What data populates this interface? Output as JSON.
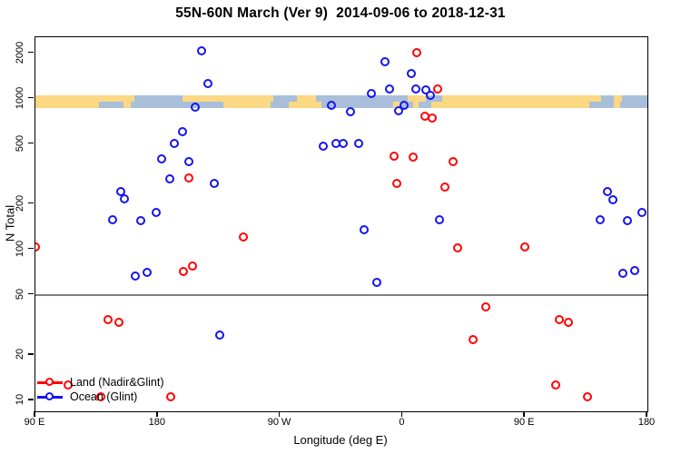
{
  "title": "55N-60N March (Ver 9)  2014-09-06 to 2018-12-31",
  "chart_data": {
    "type": "scatter",
    "title": "55N-60N March (Ver 9)  2014-09-06 to 2018-12-31",
    "xlabel": "Longitude (deg E)",
    "ylabel": "N Total",
    "x_axis": {
      "min": 90,
      "max": 540,
      "ticks": [
        {
          "value": 90,
          "label": "90 E"
        },
        {
          "value": 180,
          "label": "180"
        },
        {
          "value": 270,
          "label": "90 W"
        },
        {
          "value": 360,
          "label": "0"
        },
        {
          "value": 450,
          "label": "90 E"
        },
        {
          "value": 540,
          "label": "180"
        }
      ],
      "note": "longitude increasing eastward, wraps 90E-180-90W-0-90E-180"
    },
    "y_axis": {
      "scale": "log",
      "min": 8.44,
      "max": 2550,
      "ticks": [
        10,
        20,
        50,
        100,
        200,
        500,
        1000,
        2000
      ]
    },
    "reference_line_y": 50,
    "grid": "off",
    "legend_position": "bottom-left",
    "series": [
      {
        "name": "Land (Nadir&Glint)",
        "color": "#ff0000",
        "points": [
          [
            370.6,
            2000
          ],
          [
            386.4,
            1145
          ],
          [
            376.6,
            753
          ],
          [
            382.2,
            738
          ],
          [
            354.2,
            410
          ],
          [
            367.9,
            405
          ],
          [
            397.3,
            379
          ],
          [
            203.0,
            297
          ],
          [
            356.2,
            270
          ],
          [
            391.8,
            258
          ],
          [
            243.6,
            120
          ],
          [
            90.4,
            103
          ],
          [
            401.1,
            102
          ],
          [
            450.1,
            103
          ],
          [
            199.0,
            71
          ],
          [
            206.2,
            77
          ],
          [
            144.1,
            34
          ],
          [
            151.9,
            32.5
          ],
          [
            421.6,
            41
          ],
          [
            475.5,
            34
          ],
          [
            482.1,
            32.5
          ],
          [
            412.3,
            25
          ],
          [
            473.2,
            12.5
          ],
          [
            496.6,
            10.5
          ],
          [
            114.7,
            12.5
          ],
          [
            138.5,
            10.5
          ],
          [
            189.7,
            10.5
          ]
        ]
      },
      {
        "name": "Ocean (Glint)",
        "color": "#1414f0",
        "points": [
          [
            212.8,
            2050
          ],
          [
            217.5,
            1240
          ],
          [
            208.2,
            865
          ],
          [
            198.6,
            595
          ],
          [
            192.8,
            503
          ],
          [
            183.5,
            397
          ],
          [
            203.5,
            381
          ],
          [
            189.5,
            289
          ],
          [
            222.2,
            273
          ],
          [
            153.4,
            241
          ],
          [
            156.1,
            213
          ],
          [
            179.5,
            175
          ],
          [
            147.0,
            157
          ],
          [
            167.9,
            153
          ],
          [
            332.4,
            133
          ],
          [
            347.7,
            1750
          ],
          [
            366.9,
            1460
          ],
          [
            337.3,
            1075
          ],
          [
            350.7,
            1150
          ],
          [
            370.2,
            1140
          ],
          [
            377.8,
            1135
          ],
          [
            381.1,
            1040
          ],
          [
            307.9,
            900
          ],
          [
            361.7,
            890
          ],
          [
            357.7,
            820
          ],
          [
            322.3,
            813
          ],
          [
            302.1,
            476
          ],
          [
            311.7,
            503
          ],
          [
            316.8,
            497
          ],
          [
            327.9,
            497
          ],
          [
            387.3,
            157
          ],
          [
            511.3,
            239
          ],
          [
            515.3,
            212
          ],
          [
            505.9,
            157
          ],
          [
            525.8,
            153
          ],
          [
            536.5,
            175
          ],
          [
            341.5,
            60
          ],
          [
            522.6,
            69
          ],
          [
            530.9,
            72
          ],
          [
            164.1,
            66
          ],
          [
            172.8,
            70
          ],
          [
            226.2,
            27
          ]
        ]
      }
    ],
    "map_strip": {
      "description": "land/ocean world-map band for 55N-60N drawn across plot near N=1000",
      "n_band": [
        870,
        1057
      ],
      "land_color": "#fad884",
      "ocean_color": "#a9bfd9",
      "top_row_ocean_lon": [
        [
          163,
          198
        ],
        [
          265,
          282
        ],
        [
          296,
          364
        ],
        [
          377,
          389
        ],
        [
          506,
          515
        ],
        [
          521,
          540
        ]
      ],
      "bottom_row_ocean_lon": [
        [
          137,
          155
        ],
        [
          160,
          228
        ],
        [
          263,
          276
        ],
        [
          300,
          353
        ],
        [
          359,
          368
        ],
        [
          372,
          381
        ],
        [
          497,
          515
        ],
        [
          520,
          540
        ]
      ]
    }
  }
}
